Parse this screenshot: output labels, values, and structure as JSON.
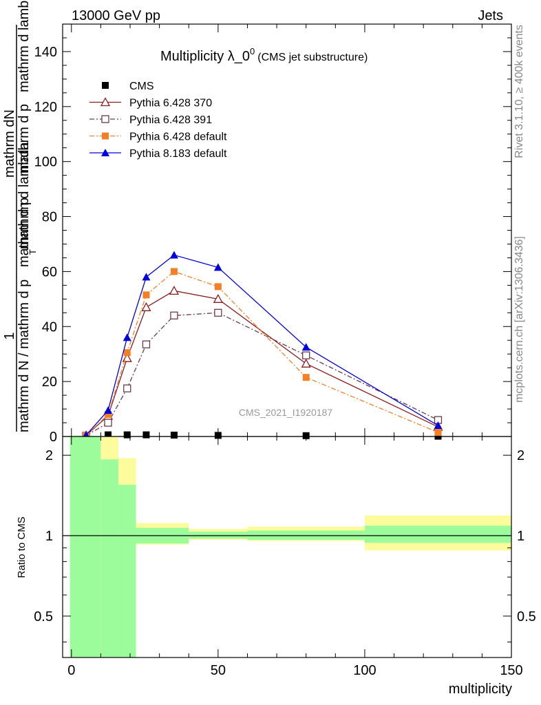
{
  "header": {
    "left": "13000 GeV pp",
    "right": "Jets",
    "side_top": "Rivet 3.1.10, ≥ 400k events",
    "side_bottom": "mcplots.cern.ch [arXiv:1306.3436]",
    "watermark": "CMS_2021_I1920187"
  },
  "chart_data": [
    {
      "type": "line",
      "title_main": "Multiplicity λ_0",
      "title_sup": "0",
      "title_sub": "(CMS jet substructure)",
      "ylabel_one": "1",
      "ylabel_lines": [
        "mathrm d N / mathrm d p",
        "mathrm d p",
        "T",
        "mathrm d lambda",
        "mathrm d",
        "mathrm d",
        "N",
        "mathrm d p"
      ],
      "ylabel_num": [
        "mathrm dN",
        "mathrm d p",
        "mathrm d lambda"
      ],
      "ylabel_den": [
        "mathrm d N / mathrm d p",
        "T",
        "mathrm d p",
        "mathrm d lambda"
      ],
      "xlim": [
        -3,
        150
      ],
      "ylim": [
        0,
        150
      ],
      "yticks": [
        0,
        20,
        40,
        60,
        80,
        100,
        120,
        140
      ],
      "ytick_labels": [
        "0",
        "20",
        "40",
        "60",
        "80",
        "100",
        "120",
        "140"
      ],
      "legend_position": "top-left",
      "series": [
        {
          "name": "CMS",
          "color": "#000000",
          "marker": "square-filled",
          "line": "none",
          "x": [
            5,
            12.5,
            19,
            25.5,
            35,
            50,
            80,
            125
          ],
          "y": [
            0.3,
            0.6,
            0.6,
            0.6,
            0.5,
            0.4,
            0.3,
            0.1
          ]
        },
        {
          "name": "Pythia 6.428 370",
          "color": "#8b1a1a",
          "marker": "triangle-open",
          "line": "solid",
          "x": [
            5,
            12.5,
            19,
            25.5,
            35,
            50,
            80,
            125
          ],
          "y": [
            0.4,
            7.5,
            28.5,
            47,
            53,
            50,
            26.5,
            3.5
          ]
        },
        {
          "name": "Pythia 6.428 391",
          "color": "#6b3a4a",
          "marker": "square-open",
          "line": "dashdot",
          "x": [
            5,
            12.5,
            19,
            25.5,
            35,
            50,
            80,
            125
          ],
          "y": [
            0.3,
            5,
            17.5,
            33.5,
            44,
            45,
            29.5,
            6
          ]
        },
        {
          "name": "Pythia 6.428 default",
          "color": "#f57f26",
          "marker": "square-filled",
          "line": "dashdot",
          "x": [
            5,
            12.5,
            19,
            25.5,
            35,
            50,
            80,
            125
          ],
          "y": [
            0.4,
            8,
            30.5,
            51.5,
            60,
            54.5,
            21.5,
            1.5
          ]
        },
        {
          "name": "Pythia 8.183 default",
          "color": "#0000dd",
          "marker": "triangle-filled",
          "line": "solid",
          "x": [
            5,
            12.5,
            19,
            25.5,
            35,
            50,
            80,
            125
          ],
          "y": [
            0.5,
            9.5,
            36,
            58,
            66,
            61.5,
            32.5,
            4
          ]
        }
      ]
    },
    {
      "type": "area",
      "ylabel": "Ratio to CMS",
      "xlabel": "multiplicity",
      "xlim": [
        -3,
        150
      ],
      "ylim": [
        0.35,
        2.35
      ],
      "scale": "log",
      "yticks": [
        0.5,
        1,
        2
      ],
      "ytick_labels": [
        "0.5",
        "1",
        "2"
      ],
      "xticks": [
        0,
        50,
        100,
        150
      ],
      "xtick_labels": [
        "0",
        "50",
        "100",
        "150"
      ],
      "reference_line": 1,
      "bands": [
        {
          "x0": -0.5,
          "x1": 10,
          "inner": [
            0.35,
            2.35
          ],
          "outer": [
            0.35,
            2.35
          ]
        },
        {
          "x0": 10,
          "x1": 16,
          "inner": [
            0.35,
            1.93
          ],
          "outer": [
            0.35,
            2.35
          ]
        },
        {
          "x0": 16,
          "x1": 22,
          "inner": [
            0.35,
            1.55
          ],
          "outer": [
            0.35,
            1.95
          ]
        },
        {
          "x0": 22,
          "x1": 40,
          "inner": [
            0.935,
            1.07
          ],
          "outer": [
            0.925,
            1.115
          ]
        },
        {
          "x0": 40,
          "x1": 60,
          "inner": [
            0.975,
            1.035
          ],
          "outer": [
            0.965,
            1.06
          ]
        },
        {
          "x0": 60,
          "x1": 100,
          "inner": [
            0.965,
            1.045
          ],
          "outer": [
            0.955,
            1.08
          ]
        },
        {
          "x0": 100,
          "x1": 150,
          "inner": [
            0.94,
            1.09
          ],
          "outer": [
            0.88,
            1.19
          ]
        }
      ],
      "inner_color": "#9cfc9c",
      "outer_color": "#fcfc9c"
    }
  ]
}
